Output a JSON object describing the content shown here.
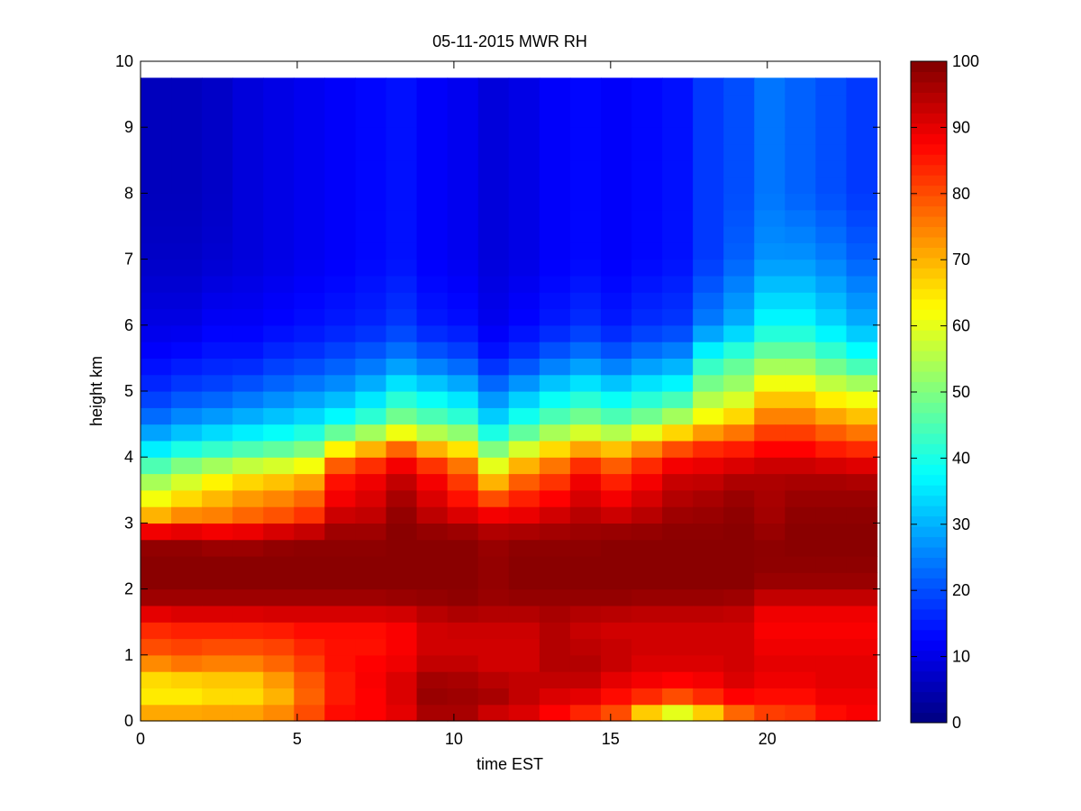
{
  "chart_data": {
    "type": "heatmap",
    "title": "05-11-2015 MWR RH",
    "xlabel": "time EST",
    "ylabel": "height km",
    "xlim": [
      0,
      23.6
    ],
    "ylim": [
      0,
      10
    ],
    "x_ticks": [
      "0",
      "5",
      "10",
      "15",
      "20"
    ],
    "y_ticks": [
      "0",
      "1",
      "2",
      "3",
      "4",
      "5",
      "6",
      "7",
      "8",
      "9",
      "10"
    ],
    "colorbar": {
      "range": [
        0,
        100
      ],
      "ticks": [
        "0",
        "10",
        "20",
        "30",
        "40",
        "50",
        "60",
        "70",
        "80",
        "90",
        "100"
      ],
      "colormap": "jet"
    },
    "grid": false,
    "data_extent": {
      "x": [
        0,
        23.5
      ],
      "y": [
        0,
        9.75
      ]
    },
    "anchor_heights": [
      0,
      0.25,
      0.5,
      0.75,
      1,
      1.25,
      1.5,
      1.75,
      2,
      2.5,
      2.8,
      3,
      3.25,
      3.5,
      3.75,
      4,
      4.25,
      4.5,
      5,
      5.5,
      6,
      7,
      8,
      9,
      9.75
    ],
    "columns": [
      {
        "t": 0.0,
        "rh": [
          75,
          67,
          62,
          70,
          78,
          82,
          85,
          95,
          99,
          99,
          97,
          75,
          65,
          58,
          50,
          40,
          32,
          25,
          17,
          13,
          10,
          7,
          6,
          6,
          6
        ]
      },
      {
        "t": 1.0,
        "rh": [
          75,
          67,
          62,
          72,
          80,
          82,
          87,
          95,
          99,
          99,
          97,
          78,
          70,
          62,
          55,
          45,
          35,
          28,
          19,
          14,
          10,
          7,
          6,
          6,
          6
        ]
      },
      {
        "t": 2.0,
        "rh": [
          75,
          68,
          64,
          72,
          78,
          82,
          87,
          95,
          99,
          99,
          95,
          78,
          72,
          67,
          60,
          47,
          38,
          30,
          20,
          15,
          12,
          8,
          7,
          7,
          7
        ]
      },
      {
        "t": 3.0,
        "rh": [
          75,
          68,
          64,
          72,
          78,
          82,
          87,
          95,
          99,
          99,
          95,
          80,
          75,
          70,
          63,
          50,
          40,
          32,
          22,
          15,
          12,
          9,
          9,
          9,
          9
        ]
      },
      {
        "t": 4.0,
        "rh": [
          78,
          70,
          70,
          75,
          80,
          82,
          88,
          95,
          99,
          99,
          97,
          82,
          77,
          72,
          65,
          52,
          42,
          34,
          24,
          17,
          13,
          10,
          10,
          10,
          10
        ]
      },
      {
        "t": 5.0,
        "rh": [
          82,
          78,
          78,
          80,
          83,
          85,
          88,
          95,
          99,
          99,
          98,
          85,
          80,
          75,
          68,
          55,
          45,
          36,
          26,
          18,
          14,
          11,
          11,
          11,
          11
        ]
      },
      {
        "t": 6.0,
        "rh": [
          88,
          85,
          85,
          85,
          87,
          85,
          88,
          95,
          99,
          99,
          98,
          95,
          90,
          87,
          85,
          72,
          55,
          40,
          28,
          20,
          15,
          12,
          12,
          12,
          12
        ]
      },
      {
        "t": 7.0,
        "rh": [
          88,
          87,
          88,
          88,
          87,
          85,
          88,
          95,
          99,
          99,
          98,
          95,
          92,
          90,
          88,
          78,
          62,
          45,
          32,
          22,
          16,
          13,
          13,
          13,
          13
        ]
      },
      {
        "t": 8.0,
        "rh": [
          90,
          90,
          92,
          90,
          88,
          88,
          88,
          96,
          99,
          99,
          99,
          99,
          97,
          95,
          92,
          85,
          70,
          52,
          38,
          25,
          18,
          14,
          14,
          14,
          14
        ]
      },
      {
        "t": 9.0,
        "rh": [
          95,
          97,
          98,
          95,
          92,
          92,
          92,
          97,
          99,
          99,
          99,
          96,
          92,
          90,
          87,
          78,
          62,
          48,
          35,
          22,
          15,
          12,
          12,
          12,
          12
        ]
      },
      {
        "t": 10.0,
        "rh": [
          95,
          97,
          97,
          95,
          92,
          92,
          93,
          98,
          99,
          99,
          99,
          94,
          88,
          84,
          80,
          72,
          58,
          45,
          32,
          20,
          14,
          11,
          11,
          11,
          11
        ]
      },
      {
        "t": 11.0,
        "rh": [
          90,
          95,
          97,
          92,
          92,
          92,
          93,
          97,
          98,
          98,
          97,
          92,
          85,
          75,
          65,
          55,
          45,
          35,
          25,
          15,
          11,
          9,
          9,
          9,
          9
        ]
      },
      {
        "t": 12.0,
        "rh": [
          90,
          92,
          95,
          92,
          92,
          92,
          93,
          97,
          99,
          99,
          98,
          92,
          87,
          82,
          75,
          65,
          52,
          42,
          30,
          18,
          13,
          10,
          10,
          10,
          10
        ]
      },
      {
        "t": 13.0,
        "rh": [
          85,
          90,
          92,
          95,
          95,
          95,
          95,
          97,
          99,
          99,
          98,
          94,
          90,
          85,
          80,
          72,
          60,
          48,
          35,
          22,
          15,
          12,
          12,
          12,
          12
        ]
      },
      {
        "t": 14.0,
        "rh": [
          80,
          88,
          92,
          95,
          95,
          93,
          93,
          97,
          99,
          99,
          98,
          96,
          93,
          90,
          88,
          78,
          65,
          52,
          38,
          25,
          17,
          13,
          13,
          13,
          13
        ]
      },
      {
        "t": 15.0,
        "rh": [
          75,
          85,
          88,
          92,
          94,
          92,
          92,
          97,
          99,
          99,
          99,
          95,
          90,
          87,
          82,
          75,
          62,
          48,
          35,
          22,
          15,
          12,
          12,
          12,
          12
        ]
      },
      {
        "t": 16.0,
        "rh": [
          55,
          80,
          87,
          90,
          92,
          92,
          92,
          96,
          99,
          99,
          99,
          96,
          93,
          90,
          87,
          80,
          68,
          52,
          38,
          25,
          17,
          13,
          13,
          13,
          13
        ]
      },
      {
        "t": 17.0,
        "rh": [
          45,
          75,
          85,
          90,
          92,
          92,
          92,
          96,
          99,
          99,
          99,
          98,
          96,
          94,
          92,
          85,
          75,
          58,
          40,
          27,
          18,
          14,
          14,
          14,
          14
        ]
      },
      {
        "t": 18.0,
        "rh": [
          55,
          80,
          87,
          90,
          92,
          92,
          92,
          96,
          99,
          99,
          99,
          98,
          97,
          95,
          92,
          87,
          80,
          65,
          52,
          40,
          25,
          18,
          18,
          18,
          18
        ]
      },
      {
        "t": 19.0,
        "rh": [
          70,
          85,
          90,
          92,
          92,
          92,
          92,
          95,
          99,
          99,
          99,
          99,
          98,
          97,
          94,
          88,
          82,
          70,
          55,
          45,
          30,
          22,
          20,
          20,
          20
        ]
      },
      {
        "t": 20.0,
        "rh": [
          78,
          85,
          88,
          90,
          90,
          88,
          88,
          90,
          97,
          99,
          98,
          97,
          96,
          96,
          95,
          90,
          85,
          78,
          65,
          50,
          38,
          27,
          24,
          24,
          24
        ]
      },
      {
        "t": 21.0,
        "rh": [
          80,
          85,
          88,
          90,
          90,
          88,
          88,
          90,
          97,
          99,
          99,
          99,
          98,
          97,
          95,
          90,
          85,
          78,
          65,
          50,
          38,
          27,
          22,
          22,
          22
        ]
      },
      {
        "t": 22.0,
        "rh": [
          85,
          88,
          90,
          90,
          90,
          88,
          88,
          90,
          97,
          99,
          99,
          99,
          98,
          97,
          95,
          88,
          82,
          75,
          60,
          45,
          34,
          25,
          20,
          20,
          20
        ]
      },
      {
        "t": 23.0,
        "rh": [
          88,
          88,
          90,
          90,
          90,
          88,
          88,
          90,
          97,
          99,
          99,
          99,
          98,
          97,
          94,
          87,
          80,
          72,
          58,
          40,
          30,
          22,
          18,
          18,
          18
        ]
      }
    ]
  }
}
